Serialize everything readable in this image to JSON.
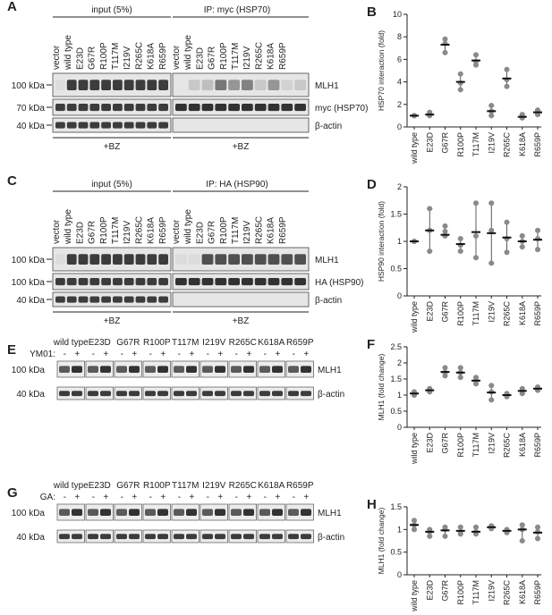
{
  "panels": {
    "A": {
      "letter": "A",
      "input_header": "input (5%)",
      "ip_header": "IP: myc (HSP70)",
      "mw": [
        "100 kDa",
        "70 kDa",
        "40 kDa"
      ],
      "bands": [
        "MLH1",
        "myc (HSP70)",
        "β-actin"
      ],
      "treatment": "+BZ"
    },
    "C": {
      "letter": "C",
      "input_header": "input (5%)",
      "ip_header": "IP: HA (HSP90)",
      "mw": [
        "100 kDa",
        "100 kDa",
        "40 kDa"
      ],
      "bands": [
        "MLH1",
        "HA (HSP90)",
        "β-actin"
      ],
      "treatment": "+BZ"
    },
    "E": {
      "letter": "E",
      "drug": "YM01:",
      "mw": [
        "100 kDa",
        "40 kDa"
      ],
      "bands": [
        "MLH1",
        "β-actin"
      ]
    },
    "G": {
      "letter": "G",
      "drug": "GA:",
      "mw": [
        "100 kDa",
        "40 kDa"
      ],
      "bands": [
        "MLH1",
        "β-actin"
      ]
    }
  },
  "lanes_with_vector": [
    "vector",
    "wild type",
    "E23D",
    "G67R",
    "R100P",
    "T117M",
    "I219V",
    "R265C",
    "K618A",
    "R659P"
  ],
  "pair_labels": [
    "wild type",
    "E23D",
    "G67R",
    "R100P",
    "T117M",
    "I219V",
    "R265C",
    "K618A",
    "R659P"
  ],
  "minus": "-",
  "plus": "+",
  "chart_data": [
    {
      "letter": "B",
      "type": "scatter",
      "ylabel": "HSP70 interaction (fold)",
      "ylim": [
        0,
        10
      ],
      "yticks": [
        0,
        2,
        4,
        6,
        8,
        10
      ],
      "categories": [
        "wild type",
        "E23D",
        "G67R",
        "R100P",
        "T117M",
        "I219V",
        "R265C",
        "K618A",
        "R659P"
      ],
      "points": [
        [
          1,
          1,
          1
        ],
        [
          1.0,
          1.1,
          1.3
        ],
        [
          7.8,
          7.4,
          6.6
        ],
        [
          4.7,
          3.9,
          3.3
        ],
        [
          6.4,
          5.8,
          5.5
        ],
        [
          1.9,
          1.4,
          1.0
        ],
        [
          5.1,
          4.2,
          3.6
        ],
        [
          0.9,
          0.8,
          1.1
        ],
        [
          1.2,
          1.5,
          1.1
        ]
      ],
      "means": [
        1,
        1.1,
        7.3,
        4.0,
        5.9,
        1.4,
        4.3,
        0.9,
        1.3
      ]
    },
    {
      "letter": "D",
      "type": "scatter",
      "ylabel": "HSP90 interaction (fold)",
      "ylim": [
        0,
        2
      ],
      "yticks": [
        0,
        0.5,
        1,
        1.5,
        2
      ],
      "categories": [
        "wild type",
        "E23D",
        "G67R",
        "R100P",
        "T117M",
        "I219V",
        "R265C",
        "K618A",
        "R659P"
      ],
      "points": [
        [
          1,
          1,
          1
        ],
        [
          1.6,
          1.2,
          0.82
        ],
        [
          1.28,
          1.1,
          1.18
        ],
        [
          1.05,
          0.93,
          0.82
        ],
        [
          1.7,
          1.1,
          0.7
        ],
        [
          1.7,
          1.2,
          0.6
        ],
        [
          1.35,
          1.05,
          0.8
        ],
        [
          1.1,
          1.0,
          0.9
        ],
        [
          1.2,
          1.05,
          0.85
        ]
      ],
      "means": [
        1,
        1.2,
        1.12,
        0.95,
        1.17,
        1.15,
        1.07,
        1.0,
        1.03
      ]
    },
    {
      "letter": "F",
      "type": "scatter",
      "ylabel": "MLH1 (fold change)",
      "ylim": [
        0,
        2.5
      ],
      "yticks": [
        0,
        0.5,
        1,
        1.5,
        2,
        2.5
      ],
      "categories": [
        "wild type",
        "E23D",
        "G67R",
        "R100P",
        "T117M",
        "I219V",
        "R265C",
        "K618A",
        "R659P"
      ],
      "points": [
        [
          1.0,
          1.05,
          1.1
        ],
        [
          1.1,
          1.15,
          1.2
        ],
        [
          1.85,
          1.7,
          1.6
        ],
        [
          1.85,
          1.7,
          1.55
        ],
        [
          1.55,
          1.45,
          1.35
        ],
        [
          1.3,
          1.1,
          0.85
        ],
        [
          1.05,
          1.0,
          0.95
        ],
        [
          1.2,
          1.15,
          1.05
        ],
        [
          1.25,
          1.2,
          1.15
        ]
      ],
      "means": [
        1.05,
        1.15,
        1.72,
        1.7,
        1.45,
        1.08,
        1.0,
        1.13,
        1.2
      ]
    },
    {
      "letter": "H",
      "type": "scatter",
      "ylabel": "MLH1 (fold change)",
      "ylim": [
        0,
        1.5
      ],
      "yticks": [
        0,
        0.5,
        1,
        1.5
      ],
      "categories": [
        "wild type",
        "E23D",
        "G67R",
        "R100P",
        "T117M",
        "I219V",
        "R265C",
        "K618A",
        "R659P"
      ],
      "points": [
        [
          1.2,
          1.1,
          1.0
        ],
        [
          1.0,
          0.95,
          0.85
        ],
        [
          1.05,
          1.0,
          0.85
        ],
        [
          1.05,
          0.95,
          0.9
        ],
        [
          1.05,
          0.95,
          0.9
        ],
        [
          1.08,
          1.05,
          1.02
        ],
        [
          1.0,
          0.97,
          0.93
        ],
        [
          1.1,
          1.0,
          0.75
        ],
        [
          1.05,
          0.95,
          0.8
        ]
      ],
      "means": [
        1.1,
        0.95,
        0.98,
        0.97,
        0.95,
        1.05,
        0.97,
        1.0,
        0.93
      ]
    }
  ]
}
